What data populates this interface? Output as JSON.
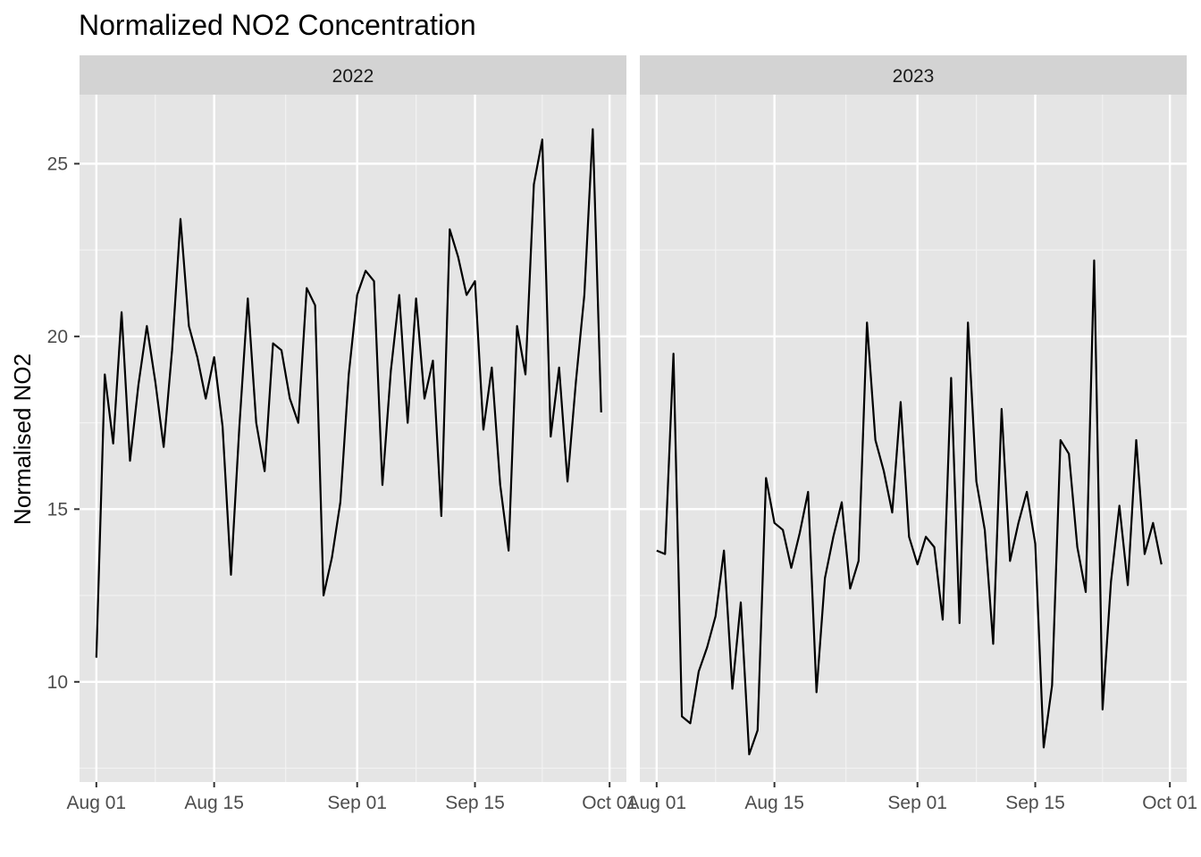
{
  "chart_data": {
    "type": "line",
    "title": "Normalized NO2 Concentration",
    "xlabel": "",
    "ylabel": "Normalised NO2",
    "ylim": [
      7.1,
      27.0
    ],
    "y_ticks": [
      10,
      15,
      20,
      25
    ],
    "y_tick_labels": [
      "10",
      "15",
      "20",
      "25"
    ],
    "x_ticks": [
      "Aug 01",
      "Aug 15",
      "Sep 01",
      "Sep 15",
      "Oct 01"
    ],
    "xlim": [
      "Jul 30",
      "Oct 03"
    ],
    "grid": true,
    "line_color": "#000000",
    "panel_background": "#e5e5e5",
    "strip_background": "#d3d3d3",
    "facets": [
      {
        "label": "2022",
        "x": [
          "Aug 01",
          "Aug 02",
          "Aug 03",
          "Aug 04",
          "Aug 05",
          "Aug 06",
          "Aug 07",
          "Aug 08",
          "Aug 09",
          "Aug 10",
          "Aug 11",
          "Aug 12",
          "Aug 13",
          "Aug 14",
          "Aug 15",
          "Aug 16",
          "Aug 17",
          "Aug 18",
          "Aug 19",
          "Aug 20",
          "Aug 21",
          "Aug 22",
          "Aug 23",
          "Aug 24",
          "Aug 25",
          "Aug 26",
          "Aug 27",
          "Aug 28",
          "Aug 29",
          "Aug 30",
          "Aug 31",
          "Sep 01",
          "Sep 02",
          "Sep 03",
          "Sep 04",
          "Sep 05",
          "Sep 06",
          "Sep 07",
          "Sep 08",
          "Sep 09",
          "Sep 10",
          "Sep 11",
          "Sep 12",
          "Sep 13",
          "Sep 14",
          "Sep 15",
          "Sep 16",
          "Sep 17",
          "Sep 18",
          "Sep 19",
          "Sep 20",
          "Sep 21",
          "Sep 22",
          "Sep 23",
          "Sep 24",
          "Sep 25",
          "Sep 26",
          "Sep 27",
          "Sep 28",
          "Sep 29",
          "Sep 30"
        ],
        "y": [
          10.7,
          18.9,
          16.9,
          20.7,
          16.4,
          18.6,
          20.3,
          18.7,
          16.8,
          19.6,
          23.4,
          20.3,
          19.4,
          18.2,
          19.4,
          17.4,
          13.1,
          17.4,
          21.1,
          17.5,
          16.1,
          19.8,
          19.6,
          18.2,
          17.5,
          21.4,
          20.9,
          12.5,
          13.6,
          15.2,
          18.9,
          21.2,
          21.9,
          21.6,
          15.7,
          19.0,
          21.2,
          17.5,
          21.1,
          18.2,
          19.3,
          14.8,
          23.1,
          22.3,
          21.2,
          21.6,
          17.3,
          19.1,
          15.7,
          13.8,
          20.3,
          18.9,
          24.4,
          25.7,
          17.1,
          19.1,
          15.8,
          18.7,
          21.2,
          26.0,
          17.8
        ]
      },
      {
        "label": "2023",
        "x": [
          "Aug 01",
          "Aug 02",
          "Aug 03",
          "Aug 04",
          "Aug 05",
          "Aug 06",
          "Aug 07",
          "Aug 08",
          "Aug 09",
          "Aug 10",
          "Aug 11",
          "Aug 12",
          "Aug 13",
          "Aug 14",
          "Aug 15",
          "Aug 16",
          "Aug 17",
          "Aug 18",
          "Aug 19",
          "Aug 20",
          "Aug 21",
          "Aug 22",
          "Aug 23",
          "Aug 24",
          "Aug 25",
          "Aug 26",
          "Aug 27",
          "Aug 28",
          "Aug 29",
          "Aug 30",
          "Aug 31",
          "Sep 01",
          "Sep 02",
          "Sep 03",
          "Sep 04",
          "Sep 05",
          "Sep 06",
          "Sep 07",
          "Sep 08",
          "Sep 09",
          "Sep 10",
          "Sep 11",
          "Sep 12",
          "Sep 13",
          "Sep 14",
          "Sep 15",
          "Sep 16",
          "Sep 17",
          "Sep 18",
          "Sep 19",
          "Sep 20",
          "Sep 21",
          "Sep 22",
          "Sep 23",
          "Sep 24",
          "Sep 25",
          "Sep 26",
          "Sep 27",
          "Sep 28",
          "Sep 29",
          "Sep 30"
        ],
        "y": [
          13.8,
          13.7,
          19.5,
          9.0,
          8.8,
          10.3,
          11.0,
          11.9,
          13.8,
          9.8,
          12.3,
          7.9,
          8.6,
          15.9,
          14.6,
          14.4,
          13.3,
          14.3,
          15.5,
          9.7,
          13.0,
          14.2,
          15.2,
          12.7,
          13.5,
          20.4,
          17.0,
          16.1,
          14.9,
          18.1,
          14.2,
          13.4,
          14.2,
          13.9,
          11.8,
          18.8,
          11.7,
          20.4,
          15.8,
          14.4,
          11.1,
          17.9,
          13.5,
          14.6,
          15.5,
          14.0,
          8.1,
          9.9,
          17.0,
          16.6,
          13.9,
          12.6,
          22.2,
          9.2,
          12.9,
          15.1,
          12.8,
          17.0,
          13.7,
          14.6,
          13.4
        ]
      }
    ]
  }
}
